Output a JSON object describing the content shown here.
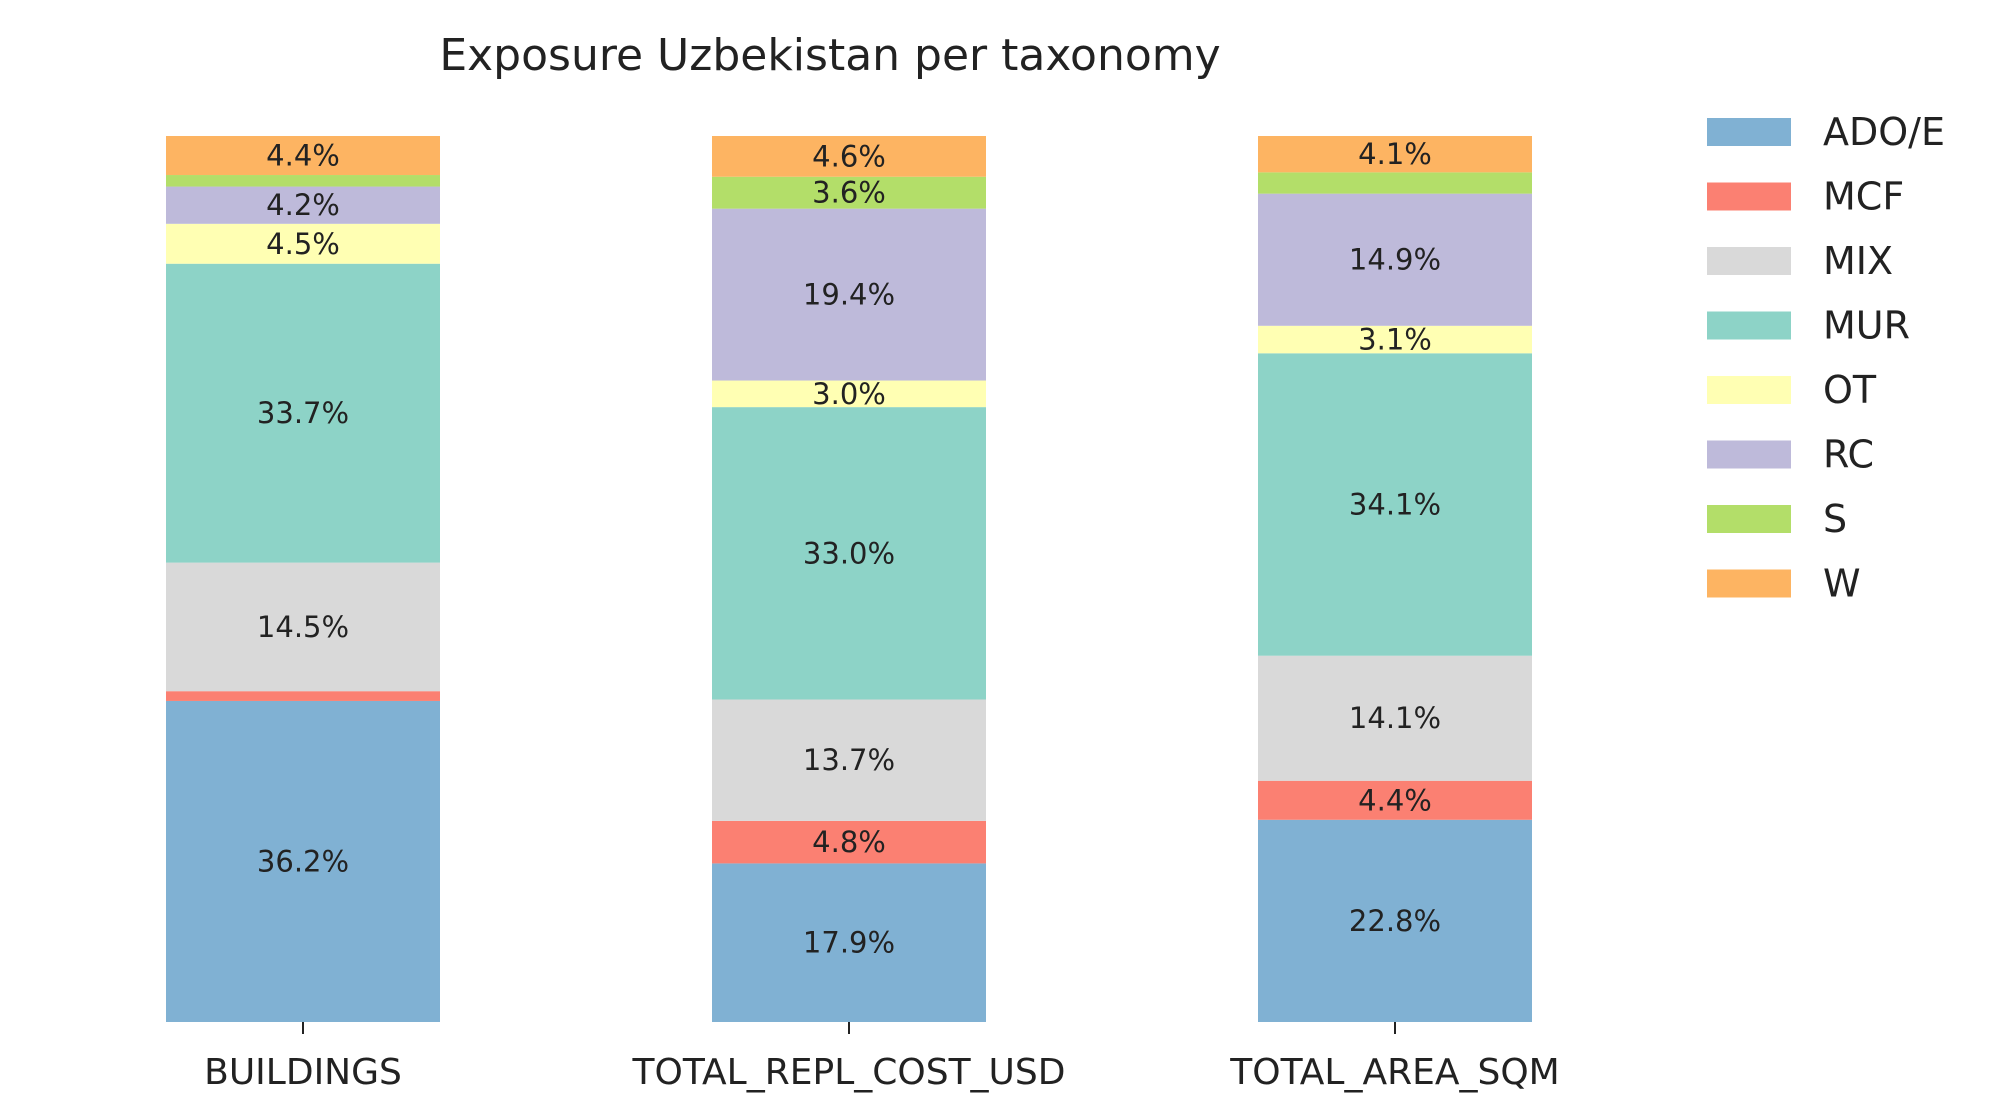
{
  "chart_data": {
    "type": "bar",
    "stacked": true,
    "normalized_percent": true,
    "title": "Exposure Uzbekistan per taxonomy",
    "xlabel": "",
    "ylabel": "",
    "categories": [
      "BUILDINGS",
      "TOTAL_REPL_COST_USD",
      "TOTAL_AREA_SQM"
    ],
    "grid": false,
    "legend_position": "right",
    "series": [
      {
        "name": "ADO/E",
        "color": "#80b1d3",
        "values": [
          36.2,
          17.9,
          22.8
        ],
        "labels": [
          "36.2%",
          "17.9%",
          "22.8%"
        ]
      },
      {
        "name": "MCF",
        "color": "#fb8072",
        "values": [
          1.1,
          4.8,
          4.4
        ],
        "labels": [
          "",
          "4.8%",
          "4.4%"
        ]
      },
      {
        "name": "MIX",
        "color": "#d9d9d9",
        "values": [
          14.5,
          13.7,
          14.1
        ],
        "labels": [
          "14.5%",
          "13.7%",
          "14.1%"
        ]
      },
      {
        "name": "MUR",
        "color": "#8dd3c7",
        "values": [
          33.7,
          33.0,
          34.1
        ],
        "labels": [
          "33.7%",
          "33.0%",
          "34.1%"
        ]
      },
      {
        "name": "OT",
        "color": "#ffffb3",
        "values": [
          4.5,
          3.0,
          3.1
        ],
        "labels": [
          "4.5%",
          "3.0%",
          "3.1%"
        ]
      },
      {
        "name": "RC",
        "color": "#bebada",
        "values": [
          4.2,
          19.4,
          14.9
        ],
        "labels": [
          "4.2%",
          "19.4%",
          "14.9%"
        ]
      },
      {
        "name": "S",
        "color": "#b3de69",
        "values": [
          1.3,
          3.6,
          2.4
        ],
        "labels": [
          "",
          "3.6%",
          ""
        ]
      },
      {
        "name": "W",
        "color": "#fdb462",
        "values": [
          4.4,
          4.6,
          4.1
        ],
        "labels": [
          "4.4%",
          "4.6%",
          "4.1%"
        ]
      }
    ]
  }
}
